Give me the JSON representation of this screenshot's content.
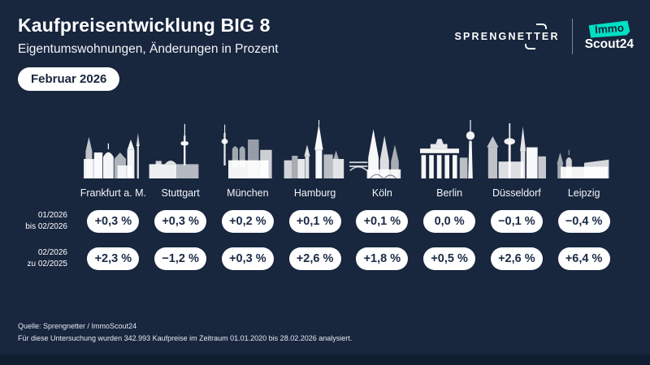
{
  "header": {
    "title": "Kaufpreisentwicklung BIG 8",
    "subtitle": "Eigentumswohnungen, Änderungen in Prozent",
    "badge": "Februar 2026"
  },
  "logos": {
    "sprengnetter": "SPRENGNETTER",
    "immo": "Immo",
    "scout24": "Scout24"
  },
  "colors": {
    "background": "#18263E",
    "footer_strip": "#111E31",
    "pill_bg": "#FFFFFF",
    "pill_text": "#1B2B45",
    "accent_teal": "#00E0C3"
  },
  "rows": [
    {
      "label_line1": "01/2026",
      "label_line2": "bis 02/2026"
    },
    {
      "label_line1": "02/2026",
      "label_line2": "zu 02/2025"
    }
  ],
  "cities": [
    {
      "key": "frankfurt",
      "name": "Frankfurt a. M.",
      "row1": "+0,3 %",
      "row2": "+2,3 %"
    },
    {
      "key": "stuttgart",
      "name": "Stuttgart",
      "row1": "+0,3 %",
      "row2": "−1,2 %"
    },
    {
      "key": "muenchen",
      "name": "München",
      "row1": "+0,2 %",
      "row2": "+0,3 %"
    },
    {
      "key": "hamburg",
      "name": "Hamburg",
      "row1": "+0,1 %",
      "row2": "+2,6 %"
    },
    {
      "key": "koeln",
      "name": "Köln",
      "row1": "+0,1 %",
      "row2": "+1,8 %"
    },
    {
      "key": "berlin",
      "name": "Berlin",
      "row1": "0,0 %",
      "row2": "+0,5 %"
    },
    {
      "key": "duesseldorf",
      "name": "Düsseldorf",
      "row1": "−0,1 %",
      "row2": "+2,6 %"
    },
    {
      "key": "leipzig",
      "name": "Leipzig",
      "row1": "−0,4 %",
      "row2": "+6,4 %"
    }
  ],
  "footer": {
    "line1": "Quelle: Sprengnetter / ImmoScout24",
    "line2": "Für diese Untersuchung wurden 342.993 Kaufpreise im Zeitraum 01.01.2020 bis 28.02.2026 analysiert."
  },
  "chart_data": {
    "type": "table",
    "title": "Kaufpreisentwicklung BIG 8",
    "subtitle": "Eigentumswohnungen, Änderungen in Prozent",
    "period": "Februar 2026",
    "unit": "%",
    "categories": [
      "Frankfurt a. M.",
      "Stuttgart",
      "München",
      "Hamburg",
      "Köln",
      "Berlin",
      "Düsseldorf",
      "Leipzig"
    ],
    "series": [
      {
        "name": "01/2026 bis 02/2026",
        "values": [
          0.3,
          0.3,
          0.2,
          0.1,
          0.1,
          0.0,
          -0.1,
          -0.4
        ]
      },
      {
        "name": "02/2026 zu 02/2025",
        "values": [
          2.3,
          -1.2,
          0.3,
          2.6,
          1.8,
          0.5,
          2.6,
          6.4
        ]
      }
    ]
  }
}
